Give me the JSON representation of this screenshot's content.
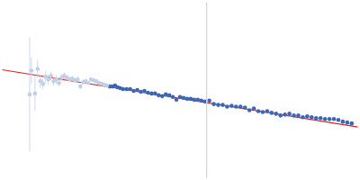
{
  "chart_data": {
    "type": "scatter",
    "xlim": [
      0,
      400
    ],
    "ylim": [
      0,
      200
    ],
    "tick_labels": false,
    "grid": false,
    "series": [
      {
        "type": "line",
        "color": "#c8d4e6",
        "line_style": "solid",
        "marker": "none",
        "x": [
          230,
          230
        ],
        "values": [
          0,
          200
        ]
      },
      {
        "type": "scatter",
        "color": "#c2d0e6",
        "marker": "circle",
        "x": [
          31,
          33,
          37,
          40,
          43,
          46,
          49,
          52,
          55,
          58,
          61,
          64,
          67,
          70,
          73,
          76,
          79,
          82,
          85,
          88,
          91,
          94,
          97,
          100,
          103,
          106,
          109,
          112,
          115,
          118
        ],
        "values": [
          95,
          122,
          96,
          124,
          110,
          107,
          115,
          112,
          116,
          110,
          112,
          108,
          114,
          116,
          114,
          112,
          113,
          111,
          112,
          104,
          109,
          110,
          108,
          112,
          111,
          110,
          108,
          107,
          106,
          105
        ],
        "errors": [
          65,
          15,
          20,
          10,
          8,
          6,
          7,
          6,
          5,
          5,
          5,
          4,
          4,
          4,
          3,
          3,
          3,
          3,
          3,
          3,
          3,
          3,
          2,
          2,
          2,
          2,
          2,
          2,
          2,
          2
        ]
      },
      {
        "type": "scatter",
        "color": "#3b67b9",
        "marker": "circle",
        "x": [
          121,
          124,
          127,
          130,
          133,
          136,
          140,
          144,
          148,
          152,
          156,
          160,
          164,
          168,
          172,
          176,
          180,
          184,
          188,
          192,
          196,
          200,
          204,
          208,
          212,
          216,
          220,
          224,
          228,
          233,
          238,
          243,
          248,
          253,
          258,
          263,
          268,
          273,
          278,
          283,
          288,
          293,
          298,
          303,
          308,
          313,
          318,
          323,
          328,
          333,
          338,
          343,
          348,
          353,
          358,
          363,
          368,
          373,
          378,
          383,
          388,
          393
        ],
        "values": [
          104,
          104,
          105,
          103,
          102,
          101,
          101,
          101,
          99,
          100,
          98,
          99,
          97,
          96,
          96,
          94,
          93,
          95,
          94,
          92,
          89,
          92,
          91,
          90,
          90,
          89,
          89,
          88,
          87,
          88,
          84,
          83,
          83,
          81,
          82,
          81,
          81,
          80,
          77,
          79,
          76,
          75,
          76,
          74,
          73,
          71,
          72,
          73,
          71,
          71,
          69,
          70,
          69,
          68,
          68,
          67,
          67,
          67,
          66,
          64,
          63,
          62
        ],
        "errors": [
          1,
          1,
          1,
          1,
          1,
          1,
          1,
          1,
          1,
          1,
          1,
          1,
          1,
          1,
          1,
          1,
          1,
          1,
          1,
          1,
          1,
          1,
          1,
          1,
          1,
          1,
          1,
          1,
          1,
          1,
          1,
          1,
          1,
          1,
          1,
          1,
          1,
          1,
          1,
          1,
          1,
          1,
          1,
          1,
          1,
          1,
          1,
          1,
          1,
          1,
          1,
          1,
          1,
          1,
          1,
          1,
          1,
          1,
          1,
          1,
          1,
          1
        ]
      },
      {
        "type": "line",
        "color": "#e02020",
        "line_style": "solid",
        "marker": "none",
        "x": [
          0,
          400
        ],
        "values": [
          123,
          58
        ]
      }
    ]
  }
}
